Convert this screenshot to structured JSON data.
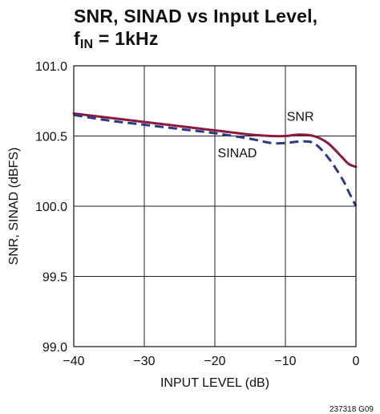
{
  "chart_data": {
    "type": "line",
    "title_line1": "SNR, SINAD vs Input Level,",
    "title_line2_prefix": "f",
    "title_line2_sub": "IN",
    "title_line2_suffix": " = 1kHz",
    "xlabel": "INPUT LEVEL (dB)",
    "ylabel": "SNR, SINAD (dBFS)",
    "xlim": [
      -40,
      0
    ],
    "ylim": [
      99.0,
      101.0
    ],
    "x_ticks": [
      -40,
      -30,
      -20,
      -10,
      0
    ],
    "x_tick_labels": [
      "−40",
      "−30",
      "−20",
      "−10",
      "0"
    ],
    "y_ticks": [
      99.0,
      99.5,
      100.0,
      100.5,
      101.0
    ],
    "y_tick_labels": [
      "99.0",
      "99.5",
      "100.0",
      "100.5",
      "101.0"
    ],
    "grid": true,
    "series": [
      {
        "name": "SNR",
        "color": "#8b1a3c",
        "style": "solid",
        "x": [
          -40,
          -35,
          -30,
          -25,
          -20,
          -15,
          -12,
          -10,
          -8,
          -6,
          -4,
          -2,
          -1,
          0
        ],
        "y": [
          100.66,
          100.63,
          100.6,
          100.57,
          100.54,
          100.51,
          100.5,
          100.5,
          100.51,
          100.5,
          100.45,
          100.35,
          100.3,
          100.28
        ]
      },
      {
        "name": "SINAD",
        "color": "#2c3a87",
        "style": "dashed",
        "x": [
          -40,
          -35,
          -30,
          -25,
          -20,
          -15,
          -12,
          -10,
          -8,
          -6,
          -4,
          -2,
          -1,
          0
        ],
        "y": [
          100.65,
          100.61,
          100.58,
          100.55,
          100.52,
          100.48,
          100.45,
          100.45,
          100.46,
          100.45,
          100.35,
          100.2,
          100.1,
          100.0
        ]
      }
    ],
    "series_labels": [
      {
        "text": "SNR",
        "x": -9.8,
        "y": 100.61
      },
      {
        "text": "SINAD",
        "x": -19.6,
        "y": 100.35
      }
    ],
    "footnote": "237318 G09"
  }
}
